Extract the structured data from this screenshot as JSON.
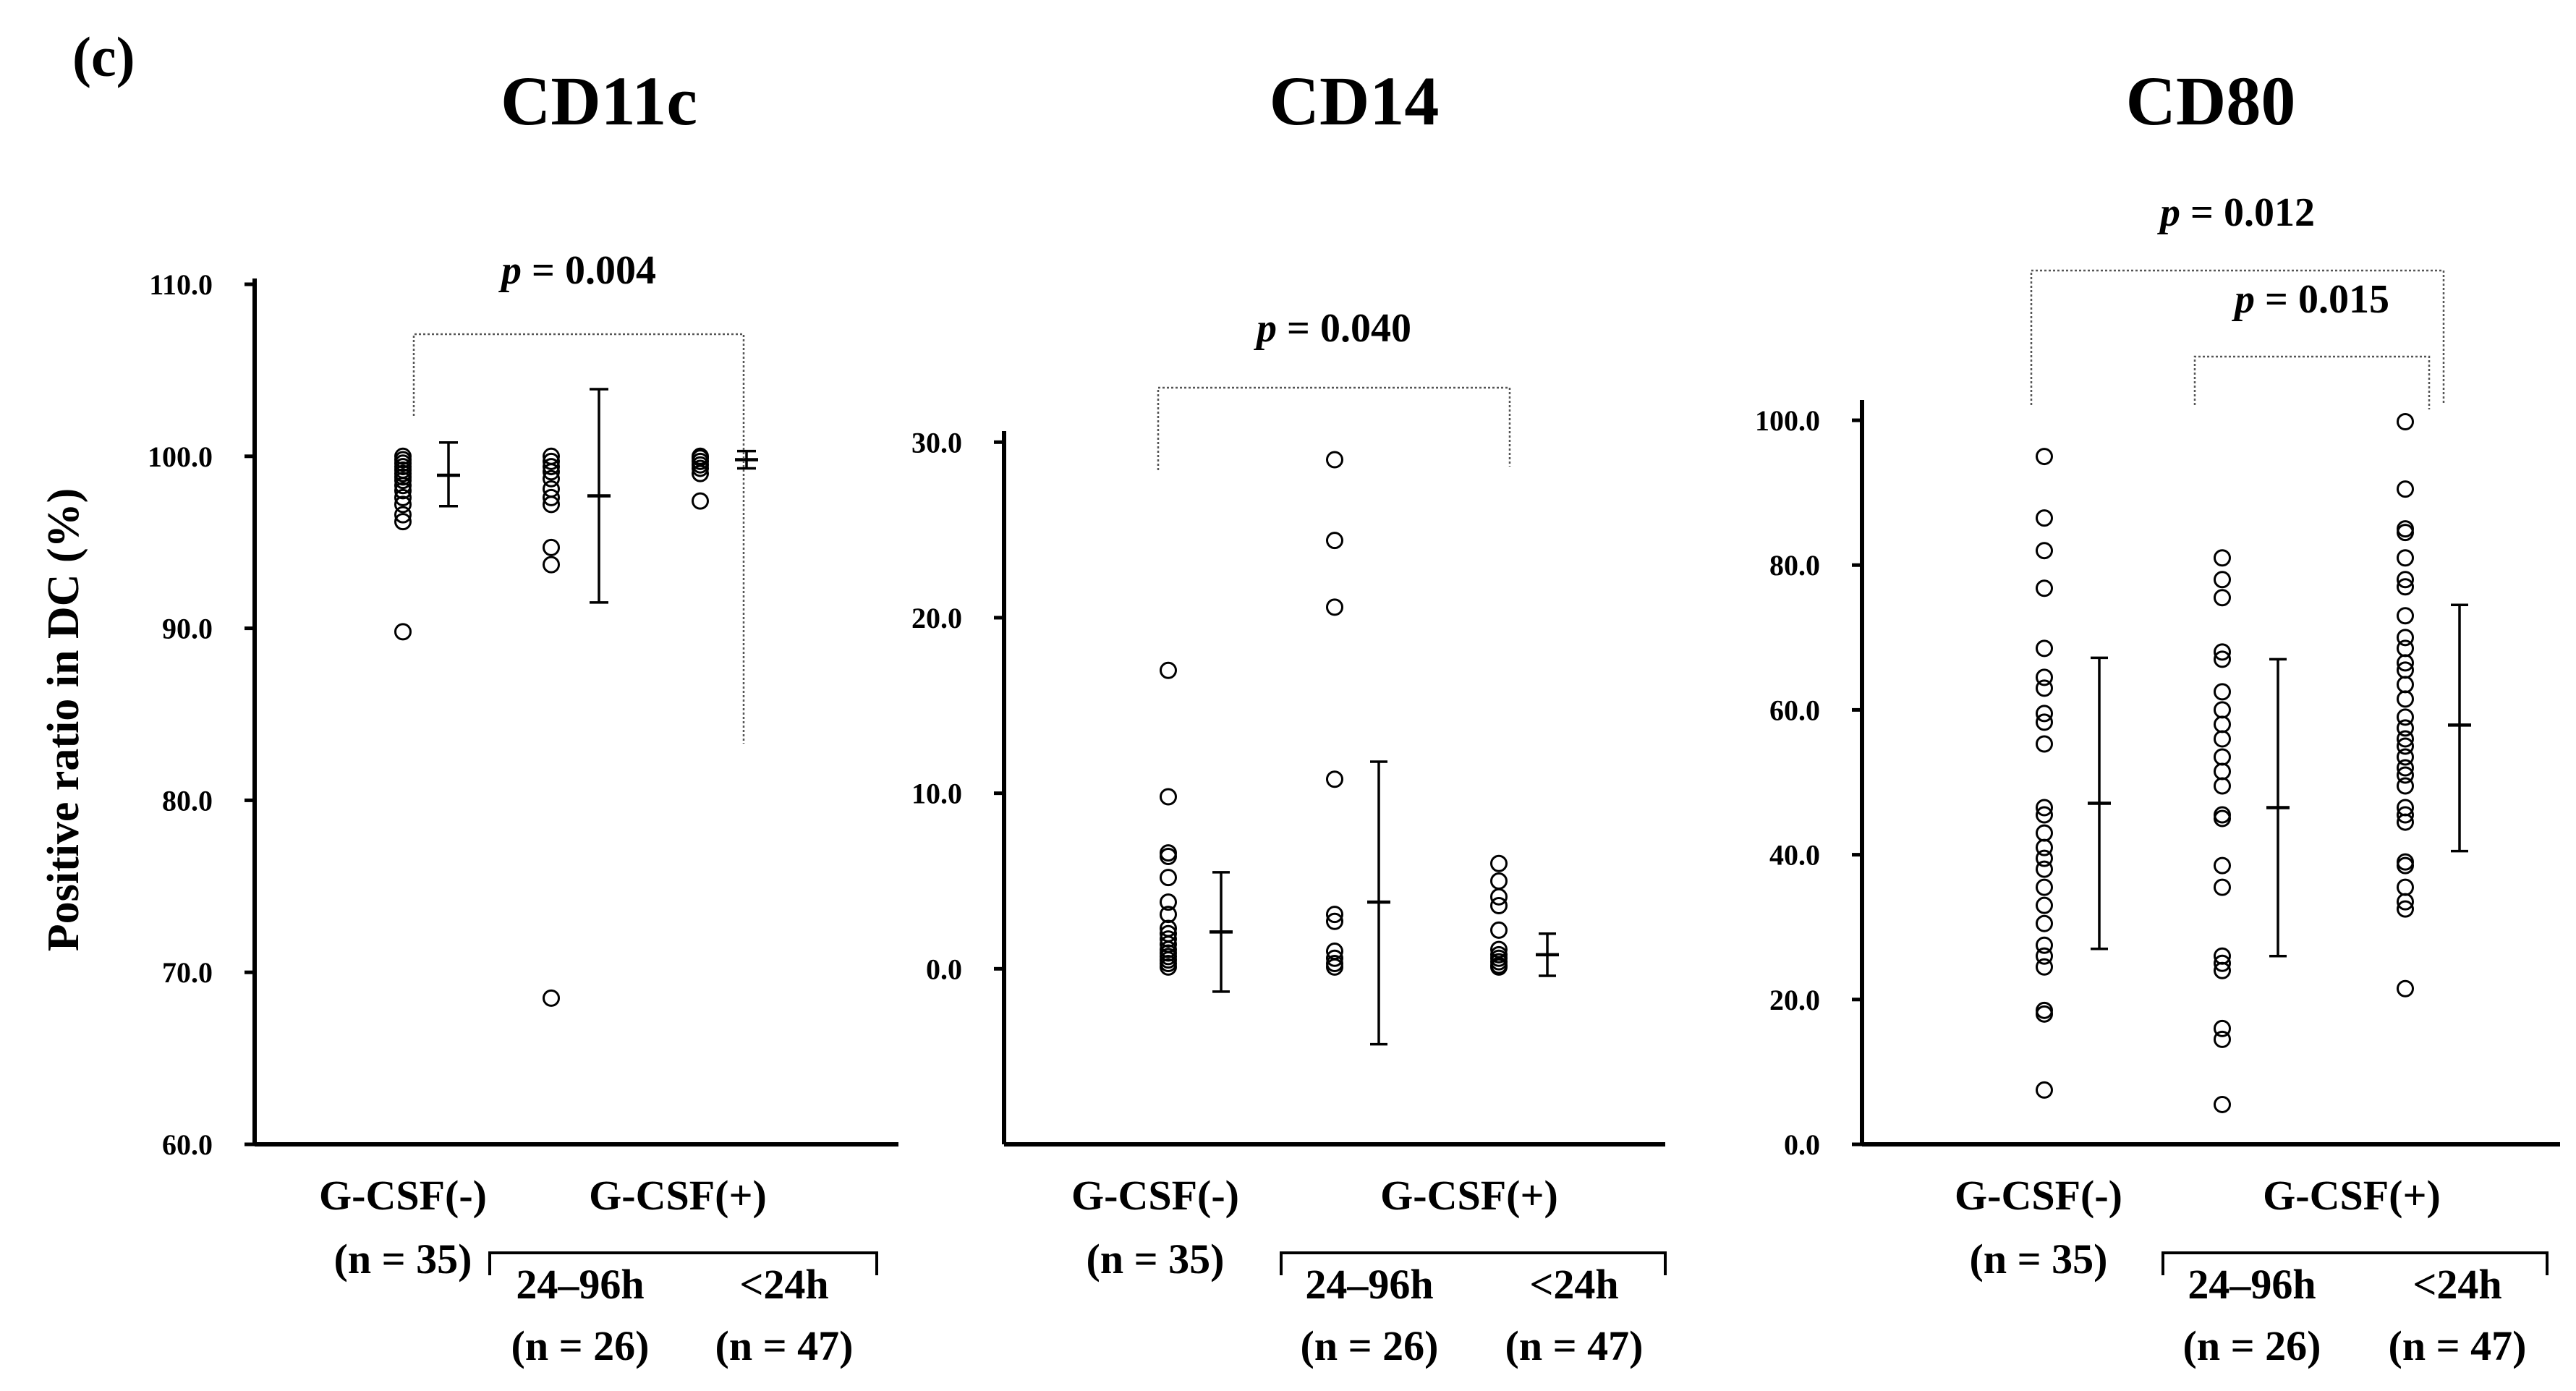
{
  "panel_label": "(c)",
  "y_axis_label": "Positive ratio in DC (%)",
  "chart_data": [
    {
      "type": "scatter",
      "title": "CD11c",
      "ylim": [
        60,
        110
      ],
      "yticks": [
        60,
        70,
        80,
        90,
        100,
        110
      ],
      "ytick_labels": [
        "60.0",
        "70.0",
        "80.0",
        "90.0",
        "100.0",
        "110.0"
      ],
      "series": [
        {
          "name": "G-CSF(-) (n = 35)",
          "values": [
            89.8,
            96.2,
            96.6,
            97.2,
            97.6,
            98.0,
            98.3,
            98.6,
            98.8,
            99.0,
            99.2,
            99.4,
            99.6,
            99.8,
            100.0
          ],
          "mean": 98.9,
          "sd_low": 97.1,
          "sd_high": 100.8
        },
        {
          "name": "G-CSF(+) 24–96h (n = 26)",
          "values": [
            68.5,
            93.7,
            94.7,
            97.2,
            97.6,
            98.1,
            98.7,
            99.1,
            99.4,
            99.7,
            100.0
          ],
          "mean": 97.7,
          "sd_low": 91.5,
          "sd_high": 103.9
        },
        {
          "name": "G-CSF(+) <24h (n = 47)",
          "values": [
            97.4,
            99.0,
            99.3,
            99.5,
            99.7,
            99.9,
            100.0
          ],
          "mean": 99.8,
          "sd_low": 99.3,
          "sd_high": 100.3
        }
      ],
      "comparisons": [
        {
          "label_p": "p",
          "label_value": "= 0.004",
          "from": 0,
          "to": 2
        }
      ]
    },
    {
      "type": "scatter",
      "title": "CD14",
      "ylim": [
        -10,
        31
      ],
      "yticks": [
        0,
        10,
        20,
        30
      ],
      "ytick_labels": [
        "0.0",
        "10.0",
        "20.0",
        "30.0"
      ],
      "series": [
        {
          "name": "G-CSF(-) (n = 35)",
          "values": [
            17.0,
            9.8,
            6.6,
            6.4,
            5.2,
            3.8,
            3.1,
            2.3,
            2.0,
            1.7,
            1.4,
            1.1,
            0.9,
            0.7,
            0.5,
            0.3,
            0.1
          ],
          "mean": 2.1,
          "sd_low": -1.3,
          "sd_high": 5.5
        },
        {
          "name": "G-CSF(+) 24–96h (n = 26)",
          "values": [
            29.0,
            24.4,
            20.6,
            10.8,
            3.1,
            2.7,
            1.0,
            0.6,
            0.3,
            0.1
          ],
          "mean": 3.8,
          "sd_low": -4.3,
          "sd_high": 11.8
        },
        {
          "name": "G-CSF(+) <24h (n = 47)",
          "values": [
            6.0,
            5.0,
            4.1,
            3.6,
            2.2,
            1.1,
            0.8,
            0.6,
            0.4,
            0.2,
            0.1
          ],
          "mean": 0.8,
          "sd_low": -0.4,
          "sd_high": 2.0
        }
      ],
      "comparisons": [
        {
          "label_p": "p",
          "label_value": "= 0.040",
          "from": 0,
          "to": 2
        }
      ]
    },
    {
      "type": "scatter",
      "title": "CD80",
      "ylim": [
        0,
        102
      ],
      "yticks": [
        0,
        20,
        40,
        60,
        80,
        100
      ],
      "ytick_labels": [
        "0.0",
        "20.0",
        "40.0",
        "60.0",
        "80.0",
        "100.0"
      ],
      "series": [
        {
          "name": "G-CSF(-) (n = 35)",
          "values": [
            95.0,
            86.5,
            82.0,
            76.8,
            68.5,
            64.5,
            63.0,
            59.5,
            58.3,
            55.3,
            46.5,
            45.5,
            43.0,
            41.0,
            39.5,
            38.0,
            35.5,
            33.0,
            30.5,
            27.5,
            26.0,
            24.5,
            18.5,
            18.0,
            7.5
          ],
          "mean": 47.1,
          "sd_low": 27.0,
          "sd_high": 67.2
        },
        {
          "name": "G-CSF(+) 24–96h (n = 26)",
          "values": [
            81.0,
            78.0,
            75.5,
            68.0,
            67.0,
            62.5,
            60.0,
            58.0,
            56.0,
            53.5,
            51.5,
            49.5,
            45.5,
            45.0,
            38.5,
            35.5,
            26.0,
            25.0,
            24.0,
            16.0,
            14.5,
            5.5
          ],
          "mean": 46.5,
          "sd_low": 26.0,
          "sd_high": 67.0
        },
        {
          "name": "G-CSF(+) <24h (n = 47)",
          "values": [
            99.8,
            90.5,
            85.0,
            84.5,
            81.0,
            78.0,
            77.0,
            73.0,
            70.0,
            68.5,
            66.5,
            65.5,
            63.5,
            61.5,
            59.0,
            57.5,
            56.0,
            55.0,
            53.5,
            52.0,
            51.0,
            49.5,
            46.5,
            45.5,
            44.5,
            39.0,
            38.5,
            35.5,
            33.5,
            32.5,
            21.5
          ],
          "mean": 57.9,
          "sd_low": 40.5,
          "sd_high": 74.5
        }
      ],
      "comparisons": [
        {
          "label_p": "p",
          "label_value": "= 0.012",
          "from": 0,
          "to": 2
        },
        {
          "label_p": "p",
          "label_value": "= 0.015",
          "from": 1,
          "to": 2
        }
      ]
    }
  ],
  "x_groups": {
    "neg_label": "G-CSF(-)",
    "neg_n": "(n = 35)",
    "pos_label": "G-CSF(+)",
    "sub1_label": "24–96h",
    "sub1_n": "(n = 26)",
    "sub2_label": "<24h",
    "sub2_n": "(n = 47)"
  }
}
